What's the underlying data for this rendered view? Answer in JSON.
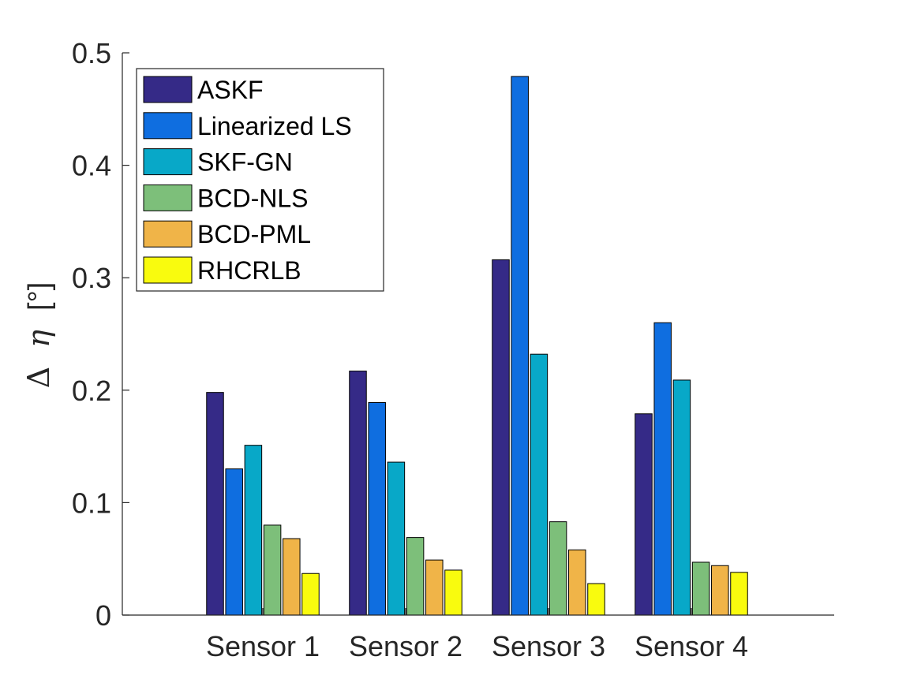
{
  "chart_data": {
    "type": "bar",
    "title": "",
    "xlabel": "",
    "ylabel": "Δ η [°]",
    "ylabel_parts": {
      "delta": "Δ",
      "eta": "η",
      "unit": "[°]"
    },
    "ylim": [
      0,
      0.5
    ],
    "yticks": [
      0,
      0.1,
      0.2,
      0.3,
      0.4,
      0.5
    ],
    "ytick_labels": [
      "0",
      "0.1",
      "0.2",
      "0.3",
      "0.4",
      "0.5"
    ],
    "categories": [
      "Sensor 1",
      "Sensor 2",
      "Sensor 3",
      "Sensor 4"
    ],
    "grid": false,
    "legend_location": "top-left",
    "series": [
      {
        "name": "ASKF",
        "color": "#352a87",
        "values": [
          0.198,
          0.217,
          0.316,
          0.179
        ]
      },
      {
        "name": "Linearized LS",
        "color": "#0f6ee0",
        "values": [
          0.13,
          0.189,
          0.479,
          0.26
        ]
      },
      {
        "name": "SKF-GN",
        "color": "#08a8c8",
        "values": [
          0.151,
          0.136,
          0.232,
          0.209
        ]
      },
      {
        "name": "BCD-NLS",
        "color": "#7dbf7a",
        "values": [
          0.08,
          0.069,
          0.083,
          0.047
        ]
      },
      {
        "name": "BCD-PML",
        "color": "#f0b448",
        "values": [
          0.068,
          0.049,
          0.058,
          0.044
        ]
      },
      {
        "name": "RHCRLB",
        "color": "#f9fb0e",
        "values": [
          0.037,
          0.04,
          0.028,
          0.038
        ]
      }
    ]
  }
}
